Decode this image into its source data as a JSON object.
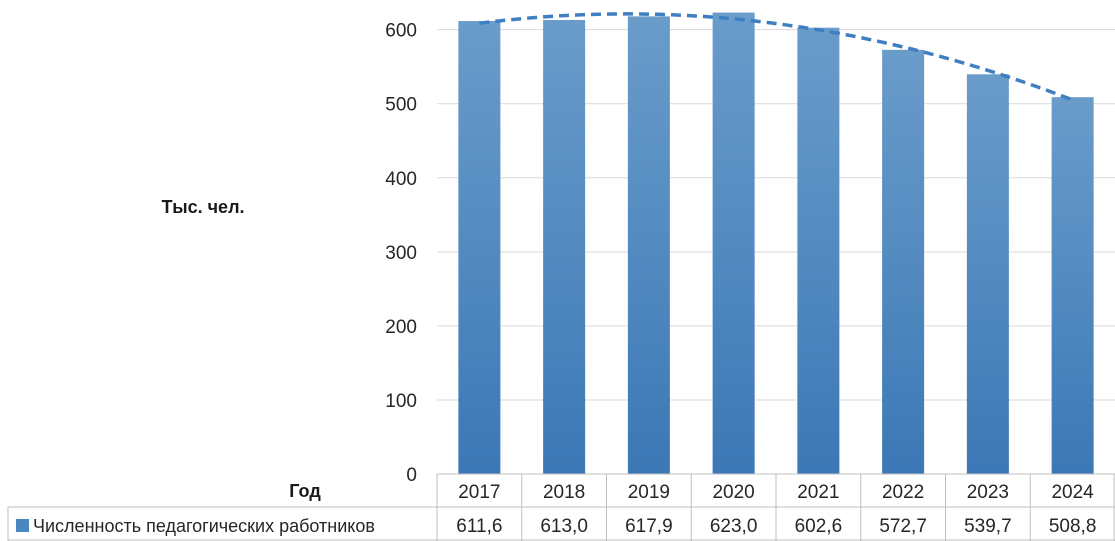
{
  "chart_data": {
    "type": "bar",
    "ylabel": "Тыс. чел.",
    "table_header": "Год",
    "categories": [
      "2017",
      "2018",
      "2019",
      "2020",
      "2021",
      "2022",
      "2023",
      "2024"
    ],
    "series": [
      {
        "name": "Численность педагогических работников",
        "values": [
          611.6,
          613.0,
          617.9,
          623.0,
          602.6,
          572.7,
          539.7,
          508.8
        ],
        "value_labels": [
          "611,6",
          "613,0",
          "617,9",
          "623,0",
          "602,6",
          "572,7",
          "539,7",
          "508,8"
        ],
        "color": "#4a86c0"
      }
    ],
    "trendline": {
      "type": "polynomial",
      "style": "dashed",
      "color": "#3f7fc1"
    },
    "yticks": [
      0,
      100,
      200,
      300,
      400,
      500,
      600
    ],
    "ylim": [
      0,
      640
    ],
    "grid": true,
    "legend": "data-table"
  }
}
